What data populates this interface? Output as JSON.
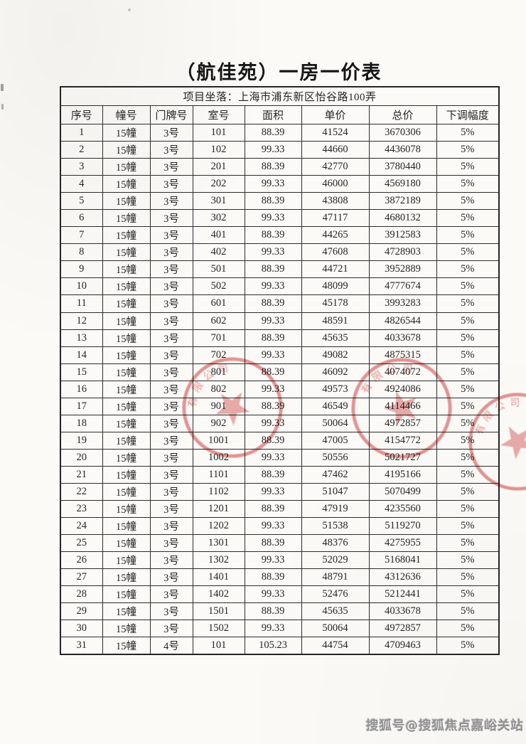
{
  "page": {
    "title": "（航佳苑）一房一价表",
    "watermark": "搜狐号@搜狐焦点嘉峪关站"
  },
  "table": {
    "location": "项目坐落：上海市浦东新区怡谷路100弄",
    "headers": [
      "序号",
      "幢号",
      "门牌号",
      "室号",
      "面积",
      "单价",
      "总价",
      "下调幅度"
    ],
    "rows": [
      [
        "1",
        "15幢",
        "3号",
        "101",
        "88.39",
        "41524",
        "3670306",
        "5%"
      ],
      [
        "2",
        "15幢",
        "3号",
        "102",
        "99.33",
        "44660",
        "4436078",
        "5%"
      ],
      [
        "3",
        "15幢",
        "3号",
        "201",
        "88.39",
        "42770",
        "3780440",
        "5%"
      ],
      [
        "4",
        "15幢",
        "3号",
        "202",
        "99.33",
        "46000",
        "4569180",
        "5%"
      ],
      [
        "5",
        "15幢",
        "3号",
        "301",
        "88.39",
        "43808",
        "3872189",
        "5%"
      ],
      [
        "6",
        "15幢",
        "3号",
        "302",
        "99.33",
        "47117",
        "4680132",
        "5%"
      ],
      [
        "7",
        "15幢",
        "3号",
        "401",
        "88.39",
        "44265",
        "3912583",
        "5%"
      ],
      [
        "8",
        "15幢",
        "3号",
        "402",
        "99.33",
        "47608",
        "4728903",
        "5%"
      ],
      [
        "9",
        "15幢",
        "3号",
        "501",
        "88.39",
        "44721",
        "3952889",
        "5%"
      ],
      [
        "10",
        "15幢",
        "3号",
        "502",
        "99.33",
        "48099",
        "4777674",
        "5%"
      ],
      [
        "11",
        "15幢",
        "3号",
        "601",
        "88.39",
        "45178",
        "3993283",
        "5%"
      ],
      [
        "12",
        "15幢",
        "3号",
        "602",
        "99.33",
        "48591",
        "4826544",
        "5%"
      ],
      [
        "13",
        "15幢",
        "3号",
        "701",
        "88.39",
        "45635",
        "4033678",
        "5%"
      ],
      [
        "14",
        "15幢",
        "3号",
        "702",
        "99.33",
        "49082",
        "4875315",
        "5%"
      ],
      [
        "15",
        "15幢",
        "3号",
        "801",
        "88.39",
        "46092",
        "4074072",
        "5%"
      ],
      [
        "16",
        "15幢",
        "3号",
        "802",
        "99.33",
        "49573",
        "4924086",
        "5%"
      ],
      [
        "17",
        "15幢",
        "3号",
        "901",
        "88.39",
        "46549",
        "4114466",
        "5%"
      ],
      [
        "18",
        "15幢",
        "3号",
        "902",
        "99.33",
        "50064",
        "4972857",
        "5%"
      ],
      [
        "19",
        "15幢",
        "3号",
        "1001",
        "88.39",
        "47005",
        "4154772",
        "5%"
      ],
      [
        "20",
        "15幢",
        "3号",
        "1002",
        "99.33",
        "50556",
        "5021727",
        "5%"
      ],
      [
        "21",
        "15幢",
        "3号",
        "1101",
        "88.39",
        "47462",
        "4195166",
        "5%"
      ],
      [
        "22",
        "15幢",
        "3号",
        "1102",
        "99.33",
        "51047",
        "5070499",
        "5%"
      ],
      [
        "23",
        "15幢",
        "3号",
        "1201",
        "88.39",
        "47919",
        "4235560",
        "5%"
      ],
      [
        "24",
        "15幢",
        "3号",
        "1202",
        "99.33",
        "51538",
        "5119270",
        "5%"
      ],
      [
        "25",
        "15幢",
        "3号",
        "1301",
        "88.39",
        "48376",
        "4275955",
        "5%"
      ],
      [
        "26",
        "15幢",
        "3号",
        "1302",
        "99.33",
        "52029",
        "5168041",
        "5%"
      ],
      [
        "27",
        "15幢",
        "3号",
        "1401",
        "88.39",
        "48791",
        "4312636",
        "5%"
      ],
      [
        "28",
        "15幢",
        "3号",
        "1402",
        "99.33",
        "52476",
        "5212441",
        "5%"
      ],
      [
        "29",
        "15幢",
        "3号",
        "1501",
        "88.39",
        "45635",
        "4033678",
        "5%"
      ],
      [
        "30",
        "15幢",
        "3号",
        "1502",
        "99.33",
        "50064",
        "4972857",
        "5%"
      ],
      [
        "31",
        "15幢",
        "4号",
        "101",
        "105.23",
        "44754",
        "4709463",
        "5%"
      ]
    ]
  },
  "stamps": {
    "seal_text": "有限公司",
    "color": "#d35757"
  }
}
